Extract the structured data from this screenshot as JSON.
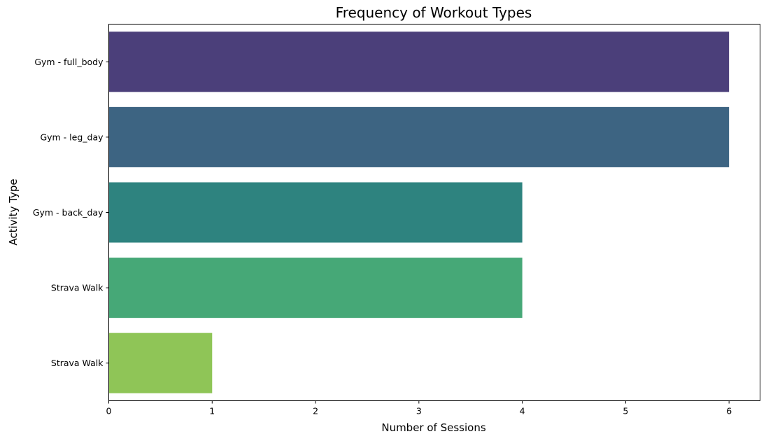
{
  "chart_data": {
    "type": "bar",
    "orientation": "horizontal",
    "title": "Frequency of Workout Types",
    "xlabel": "Number of Sessions",
    "ylabel": "Activity Type",
    "categories": [
      "Gym - full_body",
      "Gym - leg_day",
      "Gym - back_day",
      "Strava Walk",
      "Strava Walk "
    ],
    "values": [
      6,
      6,
      4,
      4,
      1
    ],
    "colors": [
      "#4b3f7a",
      "#3d6482",
      "#2e837f",
      "#46a877",
      "#8fc557"
    ],
    "xlim": [
      0,
      6.3
    ],
    "xticks": [
      "0",
      "1",
      "2",
      "3",
      "4",
      "5",
      "6"
    ],
    "grid": false,
    "legend": "none"
  }
}
